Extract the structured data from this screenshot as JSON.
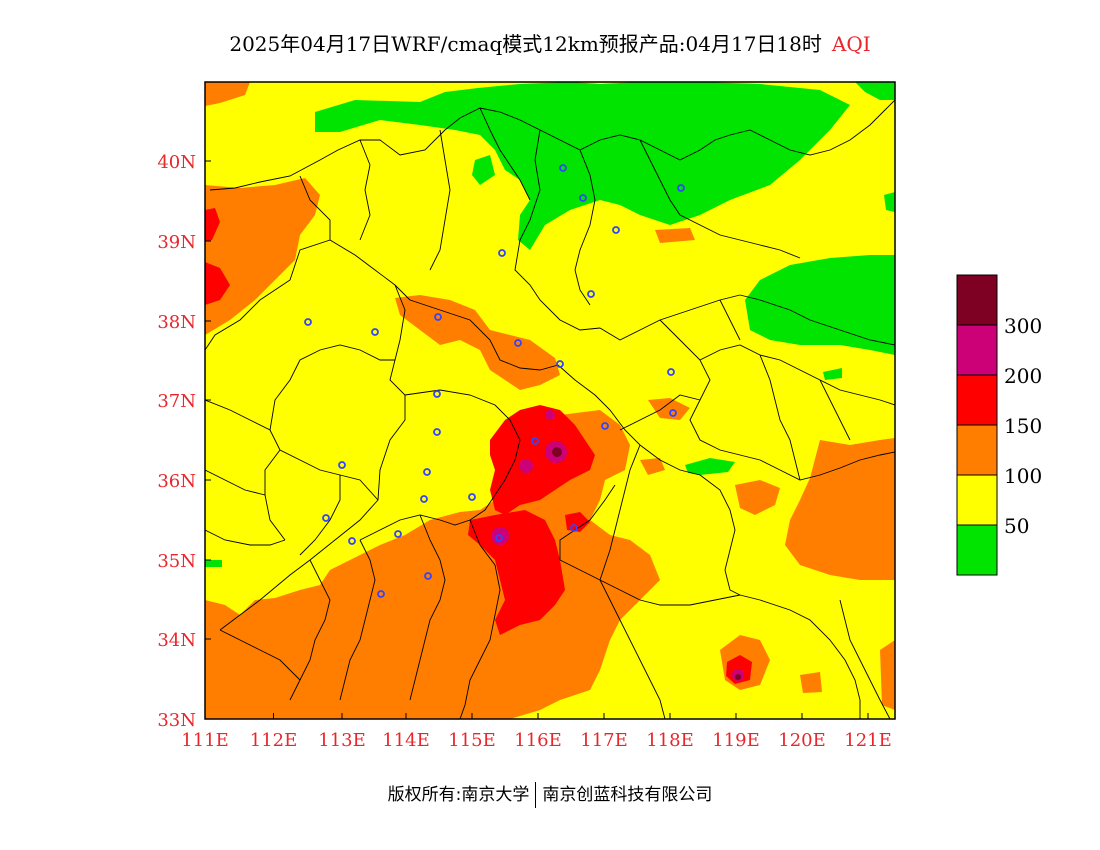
{
  "title": {
    "main": "2025年04月17日WRF/cmaq模式12km预报产品:04月17日18时",
    "pollutant": "AQI"
  },
  "axes": {
    "x_ticks": [
      "111E",
      "112E",
      "113E",
      "114E",
      "115E",
      "116E",
      "117E",
      "118E",
      "119E",
      "120E",
      "121E"
    ],
    "y_ticks": [
      "33N",
      "34N",
      "35N",
      "36N",
      "37N",
      "38N",
      "39N",
      "40N"
    ],
    "lon_range": [
      111,
      121.4
    ],
    "lat_range": [
      33,
      41
    ]
  },
  "legend": {
    "labels": [
      "50",
      "100",
      "150",
      "200",
      "300"
    ],
    "colors": [
      "#00e400",
      "#ffff00",
      "#ff7e00",
      "#ff0000",
      "#cc0077",
      "#7e0023"
    ]
  },
  "footer": {
    "copyright": "版权所有:南京大学",
    "company": "南京创蓝科技有限公司"
  },
  "colors": {
    "good": "#00e400",
    "moderate": "#ffff00",
    "unhealthy_sensitive": "#ff7e00",
    "unhealthy": "#ff0000",
    "very_unhealthy": "#cc0077",
    "hazardous": "#7e0023",
    "axis_text": "#e8262c",
    "station_marker": "#3344ff"
  }
}
